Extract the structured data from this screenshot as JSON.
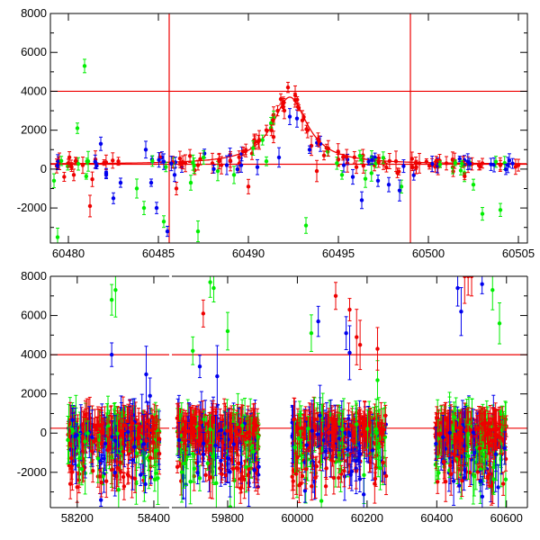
{
  "colors": {
    "green": "#00ee00",
    "blue": "#0000ee",
    "red": "#ee0000",
    "model": "#ee0000"
  },
  "chart_data": [
    {
      "type": "scatter",
      "title": "",
      "xlabel": "",
      "ylabel": "",
      "xlim": [
        60479,
        60505.5
      ],
      "ylim": [
        -3800,
        8000
      ],
      "xticks": [
        "60480",
        "60485",
        "60490",
        "60495",
        "60500",
        "60505"
      ],
      "yticks": [
        "-2000",
        "0",
        "2000",
        "4000",
        "6000",
        "8000"
      ],
      "reference_lines": {
        "horizontal": [
          250,
          4000
        ],
        "vertical": [
          60485.6,
          60499
        ]
      },
      "model_curve": {
        "baseline": 250,
        "peak_x": 60492.3,
        "peak_y": 3700,
        "width": 1.4
      },
      "series": [
        {
          "color": "red",
          "x": [
            60479.5,
            60480.3,
            60480.8,
            60481.2,
            60481.5,
            60486.5,
            60487.2,
            60488.0,
            60488.5,
            60489.0,
            60489.5,
            60490.2,
            60490.6,
            60491.0,
            60491.4,
            60491.8,
            60492.2,
            60492.6,
            60493.0,
            60493.5,
            60494.2,
            60495.0,
            60495.5,
            60496.0,
            60497.0,
            60497.5,
            60498.2,
            60499.5,
            60500.2,
            60501.0,
            60502.0,
            60503.0,
            60504.0,
            60505.0,
            60486.0,
            60490.0,
            60493.8
          ],
          "y": [
            400,
            -300,
            200,
            -1900,
            500,
            300,
            200,
            300,
            200,
            400,
            300,
            800,
            1500,
            2000,
            2800,
            3600,
            4200,
            3800,
            2500,
            1200,
            700,
            500,
            300,
            100,
            200,
            300,
            400,
            300,
            200,
            300,
            200,
            300,
            200,
            200,
            -1000,
            -900,
            -100
          ]
        },
        {
          "color": "green",
          "x": [
            60479.2,
            60479.4,
            60480.5,
            60480.9,
            60481.1,
            60483.8,
            60485.3,
            60486.8,
            60488.3,
            60489.2,
            60491.0,
            60493.2,
            60495.2,
            60496.5,
            60498.5,
            60502.0,
            60502.5,
            60503.0,
            60504.0,
            60484.2,
            60487.2
          ],
          "y": [
            -600,
            -3500,
            2100,
            5300,
            400,
            -1000,
            -2700,
            -700,
            -100,
            -300,
            400,
            -2900,
            -300,
            -500,
            -900,
            -200,
            -800,
            -2300,
            -2100,
            -2000,
            -3200
          ]
        },
        {
          "color": "blue",
          "x": [
            60481.8,
            60482.1,
            60482.5,
            60482.9,
            60484.3,
            60484.6,
            60484.9,
            60485.2,
            60485.9,
            60486.3,
            60488.8,
            60489.6,
            60490.5,
            60491.7,
            60492.3,
            60492.7,
            60493.4,
            60494.0,
            60495.3,
            60495.8,
            60496.3,
            60497.2,
            60497.8,
            60498.4,
            60485.5
          ],
          "y": [
            1300,
            -300,
            -1500,
            -700,
            1000,
            -700,
            -2000,
            600,
            -300,
            100,
            200,
            200,
            100,
            600,
            2700,
            2600,
            1000,
            1300,
            200,
            -400,
            -1600,
            -600,
            -800,
            -1100,
            -3200
          ]
        }
      ]
    },
    {
      "type": "scatter",
      "title": "",
      "xlabel": "",
      "ylabel": "",
      "xlim": [
        58130,
        60660
      ],
      "ylim": [
        -3800,
        8000
      ],
      "xticks": [
        "58200",
        "58400",
        "59800",
        "60000",
        "60200",
        "60400",
        "60600"
      ],
      "yticks": [
        "-2000",
        "0",
        "2000",
        "4000",
        "6000",
        "8000"
      ],
      "reference_lines": {
        "horizontal": [
          250,
          4000
        ]
      },
      "observing_seasons": [
        [
          58175,
          58415
        ],
        [
          59655,
          59890
        ],
        [
          59985,
          60255
        ],
        [
          60395,
          60600
        ]
      ],
      "outliers": {
        "green": {
          "x": [
            58290,
            58300,
            59700,
            59750,
            59760,
            59800,
            60040,
            60560,
            60580,
            60230,
            59720
          ],
          "y": [
            6800,
            7300,
            4200,
            7700,
            7400,
            5200,
            5100,
            7300,
            5600,
            2700,
            -2300
          ]
        },
        "blue": {
          "x": [
            58290,
            58380,
            58390,
            59720,
            59770,
            60060,
            60140,
            60150,
            60460,
            60470,
            60530
          ],
          "y": [
            4000,
            3000,
            1900,
            3400,
            2900,
            5700,
            5100,
            4100,
            7400,
            6200,
            7600
          ]
        },
        "red": {
          "x": [
            60110,
            60150,
            60170,
            60180,
            59730,
            60230,
            60480,
            60490,
            60500
          ],
          "y": [
            7000,
            6300,
            4900,
            4500,
            6100,
            4300,
            8000,
            8000,
            8000
          ]
        }
      }
    }
  ]
}
